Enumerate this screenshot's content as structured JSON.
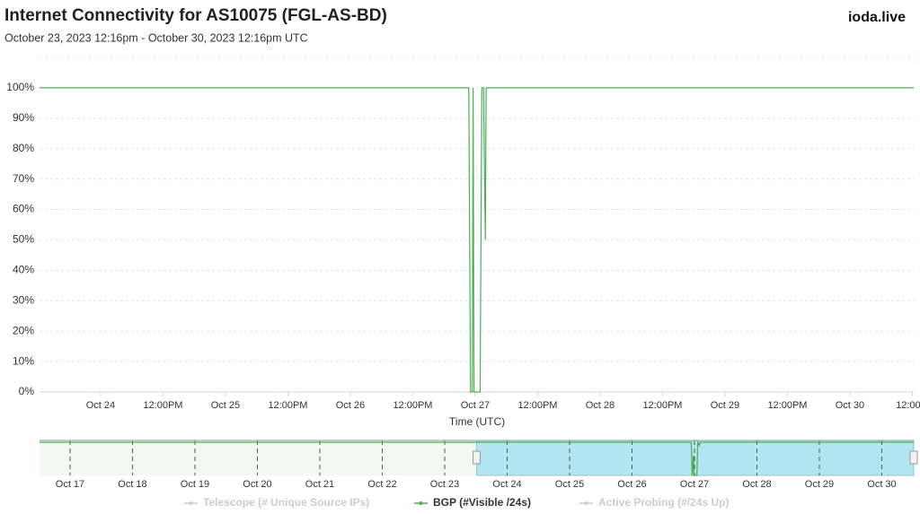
{
  "header": {
    "title": "Internet Connectivity for AS10075 (FGL-AS-BD)",
    "subtitle": "October 23, 2023 12:16pm - October 30, 2023 12:16pm UTC",
    "brand": "ioda.live"
  },
  "chart_data": {
    "type": "line",
    "xlabel": "Time (UTC)",
    "x": [
      "2023-10-23T12:16",
      "2023-10-26T22:46",
      "2023-10-26T23:06",
      "2023-10-26T23:26",
      "2023-10-26T23:36",
      "2023-10-26T23:46",
      "2023-10-27T00:56",
      "2023-10-27T01:16",
      "2023-10-27T01:36",
      "2023-10-27T01:56",
      "2023-10-27T02:06",
      "2023-10-30T12:16"
    ],
    "series": [
      {
        "name": "BGP (#Visible /24s)",
        "color": "#4caf50",
        "values": [
          100,
          100,
          0,
          0,
          100,
          0,
          0,
          100,
          100,
          50,
          100,
          100
        ]
      }
    ],
    "inactive_series": [
      {
        "name": "Telescope (# Unique Source IPs)",
        "color": "#cccccc"
      },
      {
        "name": "Active Probing (#/24s Up)",
        "color": "#cccccc"
      }
    ],
    "xlim": [
      "2023-10-23T12:16",
      "2023-10-30T12:16"
    ],
    "xticks": [
      {
        "value": "2023-10-24T00:00",
        "label": "Oct 24"
      },
      {
        "value": "2023-10-24T12:00",
        "label": "12:00PM"
      },
      {
        "value": "2023-10-25T00:00",
        "label": "Oct 25"
      },
      {
        "value": "2023-10-25T12:00",
        "label": "12:00PM"
      },
      {
        "value": "2023-10-26T00:00",
        "label": "Oct 26"
      },
      {
        "value": "2023-10-26T12:00",
        "label": "12:00PM"
      },
      {
        "value": "2023-10-27T00:00",
        "label": "Oct 27"
      },
      {
        "value": "2023-10-27T12:00",
        "label": "12:00PM"
      },
      {
        "value": "2023-10-28T00:00",
        "label": "Oct 28"
      },
      {
        "value": "2023-10-28T12:00",
        "label": "12:00PM"
      },
      {
        "value": "2023-10-29T00:00",
        "label": "Oct 29"
      },
      {
        "value": "2023-10-29T12:00",
        "label": "12:00PM"
      },
      {
        "value": "2023-10-30T00:00",
        "label": "Oct 30"
      },
      {
        "value": "2023-10-30T12:00",
        "label": "12:00..."
      }
    ],
    "ylim": [
      0,
      110
    ],
    "yticks": [
      {
        "value": 0,
        "label": "0%"
      },
      {
        "value": 10,
        "label": "10%"
      },
      {
        "value": 20,
        "label": "20%"
      },
      {
        "value": 30,
        "label": "30%"
      },
      {
        "value": 40,
        "label": "40%"
      },
      {
        "value": 50,
        "label": "50%"
      },
      {
        "value": 60,
        "label": "60%"
      },
      {
        "value": 70,
        "label": "70%"
      },
      {
        "value": 80,
        "label": "80%"
      },
      {
        "value": 90,
        "label": "90%"
      },
      {
        "value": 100,
        "label": "100%"
      }
    ],
    "grid": true,
    "navigator": {
      "xlim": [
        "2023-10-16T12:16",
        "2023-10-30T12:16"
      ],
      "ylim": [
        0,
        100
      ],
      "selection": [
        "2023-10-23T12:16",
        "2023-10-30T12:16"
      ],
      "x": [
        "2023-10-16T12:16",
        "2023-10-26T22:46",
        "2023-10-26T23:06",
        "2023-10-26T23:36",
        "2023-10-26T23:46",
        "2023-10-27T00:56",
        "2023-10-27T01:16",
        "2023-10-27T01:56",
        "2023-10-27T02:06",
        "2023-10-30T12:16"
      ],
      "values": [
        100,
        100,
        0,
        60,
        0,
        0,
        100,
        90,
        100,
        100
      ],
      "xticks": [
        {
          "value": "2023-10-17T00:00",
          "label": "Oct 17"
        },
        {
          "value": "2023-10-18T00:00",
          "label": "Oct 18"
        },
        {
          "value": "2023-10-19T00:00",
          "label": "Oct 19"
        },
        {
          "value": "2023-10-20T00:00",
          "label": "Oct 20"
        },
        {
          "value": "2023-10-21T00:00",
          "label": "Oct 21"
        },
        {
          "value": "2023-10-22T00:00",
          "label": "Oct 22"
        },
        {
          "value": "2023-10-23T00:00",
          "label": "Oct 23"
        },
        {
          "value": "2023-10-24T00:00",
          "label": "Oct 24"
        },
        {
          "value": "2023-10-25T00:00",
          "label": "Oct 25"
        },
        {
          "value": "2023-10-26T00:00",
          "label": "Oct 26"
        },
        {
          "value": "2023-10-27T00:00",
          "label": "Oct 27"
        },
        {
          "value": "2023-10-28T00:00",
          "label": "Oct 28"
        },
        {
          "value": "2023-10-29T00:00",
          "label": "Oct 29"
        },
        {
          "value": "2023-10-30T00:00",
          "label": "Oct 30"
        }
      ]
    }
  }
}
